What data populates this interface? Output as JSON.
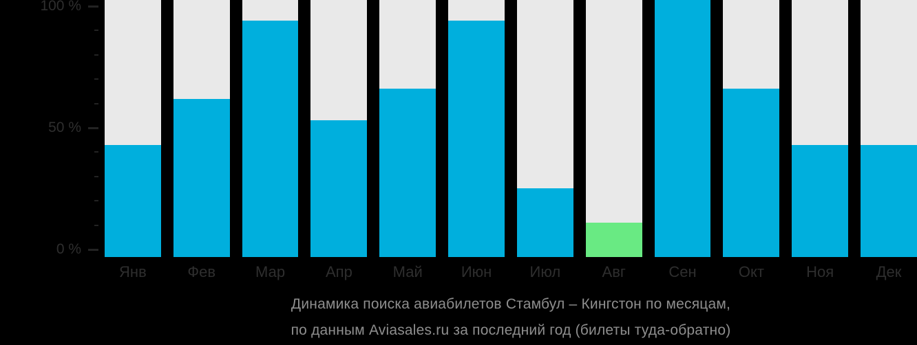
{
  "chart_data": {
    "type": "bar",
    "title_lines": [
      "Динамика поиска авиабилетов Стамбул – Кингстон по месяцам,",
      "по данным Aviasales.ru за последний год (билеты туда-обратно)"
    ],
    "title": "Динамика поиска авиабилетов Стамбул – Кингстон по месяцам, по данным Aviasales.ru за последний год (билеты туда-обратно)",
    "categories": [
      "Янв",
      "Фев",
      "Мар",
      "Апр",
      "Май",
      "Июн",
      "Июл",
      "Авг",
      "Сен",
      "Окт",
      "Ноя",
      "Дек"
    ],
    "values": [
      43,
      62,
      94,
      53,
      66,
      94,
      25,
      11,
      100,
      66,
      43,
      43
    ],
    "unit": "%",
    "highlight_month": "Авг",
    "highlight_value": 11,
    "xlabel": "",
    "ylabel": "",
    "y_axis": {
      "range": [
        0,
        100
      ],
      "minor_tick_step": 10,
      "major_ticks": [
        {
          "value": 0,
          "label": "0 %"
        },
        {
          "value": 50,
          "label": "50 %"
        },
        {
          "value": 100,
          "label": "100 %"
        }
      ]
    },
    "grid": false,
    "legend": "none",
    "track_bars_full_height": true
  },
  "colors": {
    "background": "#000000",
    "bar": "#00afdd",
    "bar_highlight": "#69ea83",
    "bar_track": "#e9e9e9",
    "axis_text": "#2e2e2e",
    "tick": "#232323",
    "title_text": "#8e8e8e"
  }
}
